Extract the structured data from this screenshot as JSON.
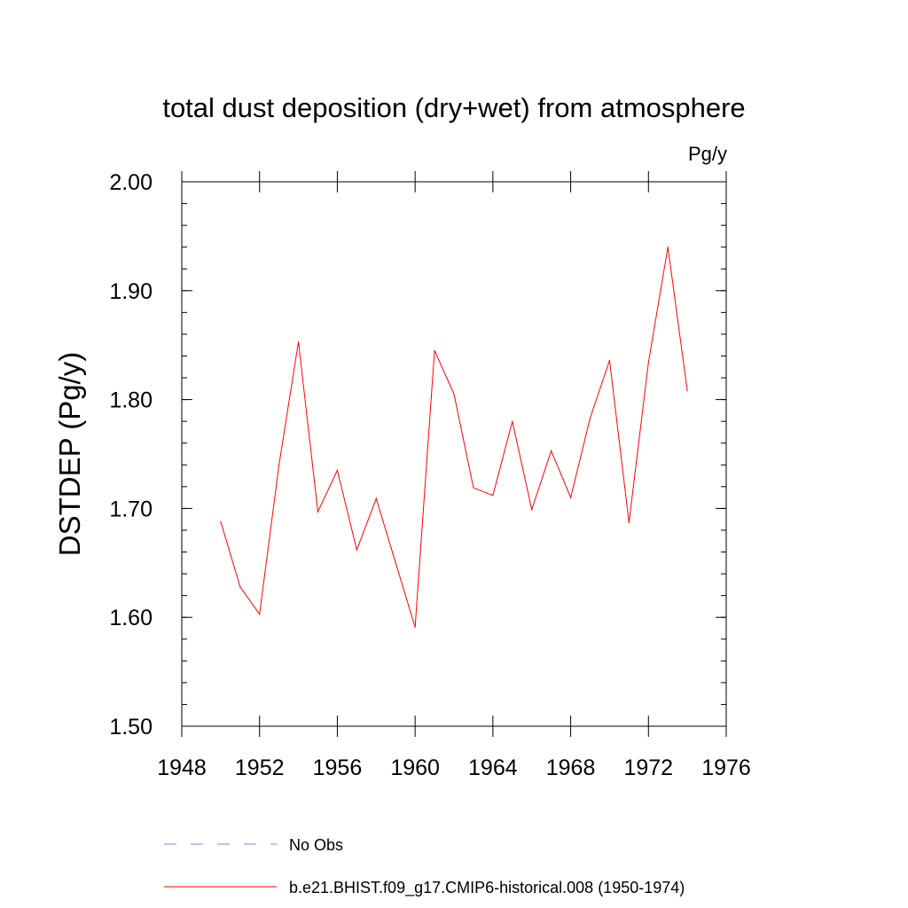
{
  "chart_data": {
    "type": "line",
    "title": "total dust deposition (dry+wet) from atmosphere",
    "units_label": "Pg/y",
    "ylabel": "DSTDEP  (Pg/y)",
    "xlabel": "",
    "xlim": [
      1948,
      1976
    ],
    "ylim": [
      1.5,
      2.0
    ],
    "x_ticks": [
      1948,
      1952,
      1956,
      1960,
      1964,
      1968,
      1972,
      1976
    ],
    "x_tick_labels": [
      "1948",
      "1952",
      "1956",
      "1960",
      "1964",
      "1968",
      "1972",
      "1976"
    ],
    "y_ticks": [
      1.5,
      1.6,
      1.7,
      1.8,
      1.9,
      2.0
    ],
    "y_tick_labels": [
      "1.50",
      "1.60",
      "1.70",
      "1.80",
      "1.90",
      "2.00"
    ],
    "grid": false,
    "legend_position": "bottom",
    "series": [
      {
        "name": "No Obs",
        "color": "#8080ff",
        "style": "dashed",
        "x": [],
        "values": []
      },
      {
        "name": "b.e21.BHIST.f09_g17.CMIP6-historical.008 (1950-1974)",
        "color": "#ff0000",
        "style": "solid",
        "x": [
          1950,
          1951,
          1952,
          1953,
          1954,
          1955,
          1956,
          1957,
          1958,
          1959,
          1960,
          1961,
          1962,
          1963,
          1964,
          1965,
          1966,
          1967,
          1968,
          1969,
          1970,
          1971,
          1972,
          1973,
          1974
        ],
        "values": [
          1.688,
          1.628,
          1.603,
          1.74,
          1.853,
          1.697,
          1.735,
          1.662,
          1.709,
          1.65,
          1.591,
          1.845,
          1.805,
          1.719,
          1.712,
          1.78,
          1.699,
          1.753,
          1.71,
          1.783,
          1.836,
          1.687,
          1.834,
          1.94,
          1.808
        ]
      }
    ]
  }
}
